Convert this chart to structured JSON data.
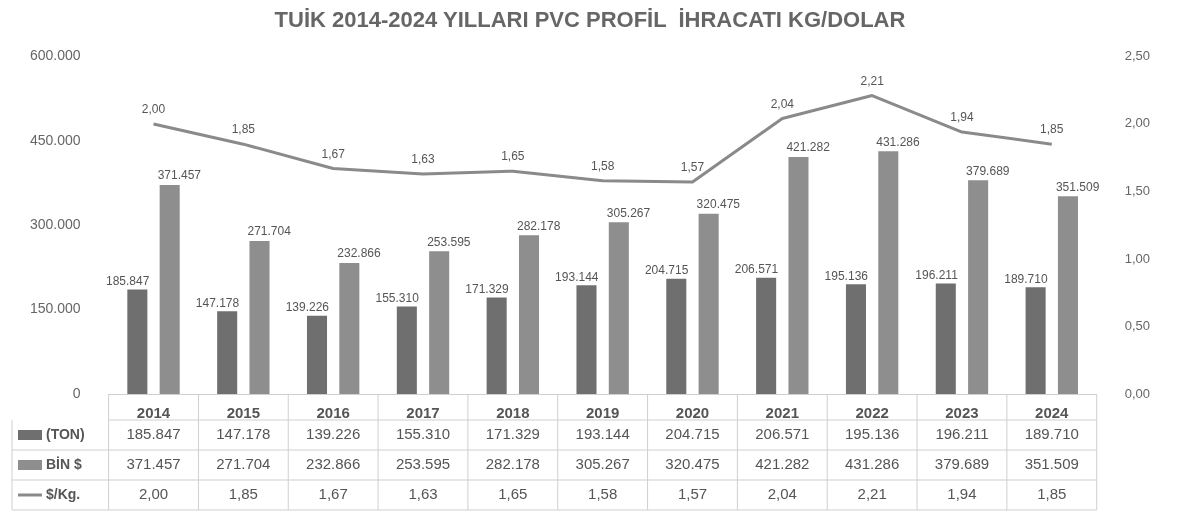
{
  "chart_data": {
    "type": "bar",
    "title": "TUİK 2014-2024 YILLARI PVC PROFİL  İHRACATI KG/DOLAR",
    "categories": [
      "2014",
      "2015",
      "2016",
      "2017",
      "2018",
      "2019",
      "2020",
      "2021",
      "2022",
      "2023",
      "2024"
    ],
    "series": [
      {
        "name": "(TON)",
        "color": "#6f6f6f",
        "values": [
          185847,
          147178,
          139226,
          155310,
          171329,
          193144,
          204715,
          206571,
          195136,
          196211,
          189710
        ],
        "value_labels": [
          "185.847",
          "147.178",
          "139.226",
          "155.310",
          "171.329",
          "193.144",
          "204.715",
          "206.571",
          "195.136",
          "196.211",
          "189.710"
        ]
      },
      {
        "name": "BİN $",
        "color": "#8e8e8e",
        "values": [
          371457,
          271704,
          232866,
          253595,
          282178,
          305267,
          320475,
          421282,
          431286,
          379689,
          351509
        ],
        "value_labels": [
          "371.457",
          "271.704",
          "232.866",
          "253.595",
          "282.178",
          "305.267",
          "320.475",
          "421.282",
          "431.286",
          "379.689",
          "351.509"
        ]
      },
      {
        "name": "$/Kg.",
        "type": "line",
        "axis": "y2",
        "color": "#8a8a8a",
        "values": [
          2.0,
          1.85,
          1.67,
          1.63,
          1.65,
          1.58,
          1.57,
          2.04,
          2.21,
          1.94,
          1.85
        ],
        "value_labels": [
          "2,00",
          "1,85",
          "1,67",
          "1,63",
          "1,65",
          "1,58",
          "1,57",
          "2,04",
          "2,21",
          "1,94",
          "1,85"
        ]
      }
    ],
    "ylim": [
      0,
      600000
    ],
    "yticks": [
      {
        "value": 0,
        "label": "0"
      },
      {
        "value": 150000,
        "label": "150.000"
      },
      {
        "value": 300000,
        "label": "300.000"
      },
      {
        "value": 450000,
        "label": "450.000"
      },
      {
        "value": 600000,
        "label": "600.000"
      }
    ],
    "y2lim": [
      0,
      2.5
    ],
    "y2ticks": [
      {
        "value": 0,
        "label": "0,00"
      },
      {
        "value": 0.5,
        "label": "0,50"
      },
      {
        "value": 1,
        "label": "1,00"
      },
      {
        "value": 1.5,
        "label": "1,50"
      },
      {
        "value": 2,
        "label": "2,00"
      },
      {
        "value": 2.5,
        "label": "2,50"
      }
    ],
    "legend": "bottom"
  }
}
